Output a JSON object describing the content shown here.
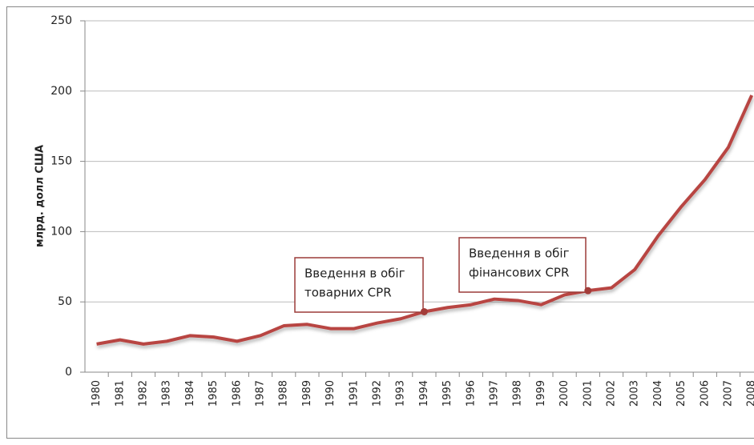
{
  "chart_data": {
    "type": "line",
    "y_label": "млрд. долл США",
    "categories": [
      "1980",
      "1981",
      "1982",
      "1983",
      "1984",
      "1985",
      "1986",
      "1987",
      "1988",
      "1989",
      "1990",
      "1991",
      "1992",
      "1993",
      "1994",
      "1995",
      "1996",
      "1997",
      "1998",
      "1999",
      "2000",
      "2001",
      "2002",
      "2003",
      "2004",
      "2005",
      "2006",
      "2007",
      "2008"
    ],
    "series": [
      {
        "color": "#b84542",
        "values": [
          20,
          23,
          20,
          22,
          26,
          25,
          22,
          26,
          33,
          34,
          31,
          31,
          35,
          38,
          43,
          46,
          48,
          52,
          51,
          48,
          55,
          58,
          60,
          73,
          97,
          118,
          137,
          160,
          197
        ]
      }
    ],
    "ylim": [
      0,
      250
    ],
    "yticks": [
      0,
      50,
      100,
      150,
      200,
      250
    ],
    "grid": true,
    "annotations": [
      {
        "lines": [
          "Введення в обіг",
          "товарних CPR"
        ],
        "category": "1994"
      },
      {
        "lines": [
          "Введення в обіг",
          "фінансових CPR"
        ],
        "category": "2001"
      }
    ]
  }
}
